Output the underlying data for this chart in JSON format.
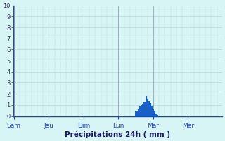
{
  "xlabel": "Précipitations 24h ( mm )",
  "background_color": "#d8f5f5",
  "grid_color": "#b8d8d8",
  "bar_color": "#1a5fc8",
  "ylim": [
    0,
    10
  ],
  "yticks": [
    0,
    1,
    2,
    3,
    4,
    5,
    6,
    7,
    8,
    9,
    10
  ],
  "day_labels": [
    "Sam",
    "Jeu",
    "Dim",
    "Lun",
    "Mar",
    "Mer"
  ],
  "n_bars": 144,
  "bar_values": [
    0,
    0,
    0,
    0,
    0,
    0,
    0,
    0,
    0,
    0,
    0,
    0,
    0,
    0,
    0,
    0,
    0,
    0,
    0,
    0,
    0,
    0,
    0,
    0,
    0,
    0,
    0,
    0,
    0,
    0,
    0,
    0,
    0,
    0,
    0,
    0,
    0,
    0,
    0,
    0,
    0,
    0,
    0,
    0,
    0,
    0,
    0,
    0,
    0,
    0,
    0,
    0,
    0,
    0,
    0,
    0,
    0,
    0,
    0,
    0,
    0,
    0,
    0,
    0,
    0,
    0,
    0,
    0,
    0,
    0,
    0,
    0,
    0,
    0,
    0,
    0,
    0,
    0,
    0,
    0,
    0,
    0,
    0,
    0,
    0.4,
    0.5,
    0.7,
    0.9,
    1.0,
    1.1,
    1.3,
    1.8,
    1.5,
    1.4,
    1.2,
    0.9,
    0.6,
    0.4,
    0.2,
    0.1,
    0,
    0,
    0,
    0,
    0,
    0,
    0,
    0,
    0,
    0,
    0,
    0,
    0,
    0,
    0,
    0,
    0,
    0,
    0,
    0,
    0,
    0,
    0,
    0,
    0,
    0,
    0,
    0,
    0,
    0,
    0,
    0,
    0,
    0,
    0,
    0,
    0,
    0,
    0,
    0,
    0,
    0,
    0,
    0,
    0,
    0,
    0,
    0
  ]
}
